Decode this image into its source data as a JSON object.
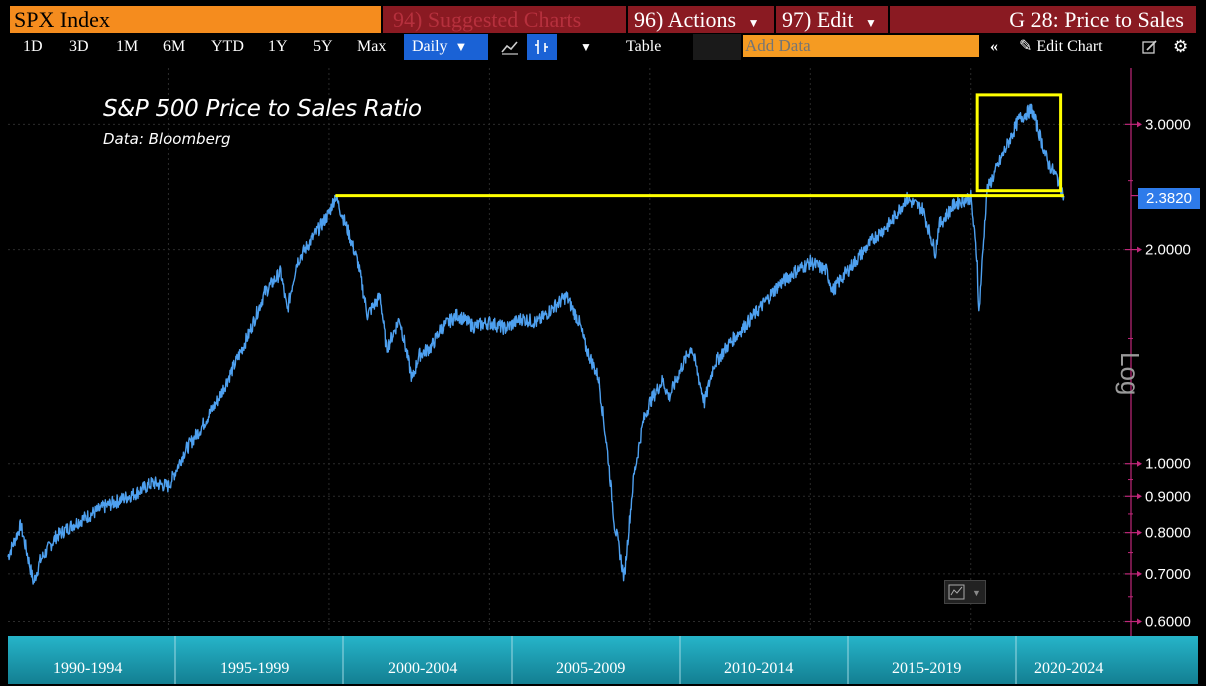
{
  "header": {
    "security": "SPX Index",
    "suggested": "94) Suggested Charts",
    "actions": "96) Actions",
    "edit": "97) Edit",
    "chart_title": "G 28: Price to Sales"
  },
  "toolbar": {
    "ranges": [
      "1D",
      "3D",
      "1M",
      "6M",
      "YTD",
      "1Y",
      "5Y",
      "Max"
    ],
    "frequency": "Daily",
    "table": "Table",
    "add_data_placeholder": "Add Data",
    "edit_chart": "Edit Chart"
  },
  "chart": {
    "title": "S&P 500 Price to Sales Ratio",
    "source": "Data: Bloomberg",
    "last_value": "2.3820",
    "scale_label": "Log"
  },
  "chart_data": {
    "type": "line",
    "title": "S&P 500 Price to Sales Ratio",
    "subtitle": "Data: Bloomberg",
    "ylabel": "Log",
    "y_scale": "log",
    "ylim": [
      0.58,
      3.6
    ],
    "y_ticks": [
      "3.0000",
      "2.0000",
      "1.0000",
      "0.9000",
      "0.8000",
      "0.7000",
      "0.6000"
    ],
    "x_periods": [
      "1990-1994",
      "1995-1999",
      "2000-2004",
      "2005-2009",
      "2010-2014",
      "2015-2019",
      "2020-2024"
    ],
    "colors": {
      "series": "#4ea0ef",
      "highlight": "#ffff00",
      "axis": "#c0277a",
      "panel": "#1aa3b8"
    },
    "series": [
      {
        "x": [
          1990.0,
          1990.4,
          1990.8,
          1991.0,
          1991.5,
          1992.0,
          1993.0,
          1994.0,
          1994.5,
          1995.0,
          1995.5,
          1996.0,
          1996.5,
          1997.0,
          1997.5,
          1998.0,
          1998.5,
          1998.7,
          1999.0,
          1999.5,
          2000.0,
          2000.2,
          2000.6,
          2000.9,
          2001.2,
          2001.6,
          2001.8,
          2002.2,
          2002.6,
          2002.8,
          2003.2,
          2003.5,
          2004.0,
          2004.5,
          2005.0,
          2005.5,
          2006.0,
          2006.5,
          2007.0,
          2007.4,
          2007.8,
          2008.0,
          2008.4,
          2008.7,
          2008.9,
          2009.0,
          2009.2,
          2009.5,
          2009.8,
          2010.0,
          2010.4,
          2010.6,
          2011.0,
          2011.3,
          2011.7,
          2012.0,
          2012.5,
          2013.0,
          2013.5,
          2014.0,
          2014.5,
          2015.0,
          2015.5,
          2015.7,
          2016.0,
          2016.5,
          2017.0,
          2017.5,
          2018.0,
          2018.5,
          2018.9,
          2019.0,
          2019.5,
          2020.0,
          2020.2,
          2020.25,
          2020.5,
          2021.0,
          2021.5,
          2021.9,
          2022.0,
          2022.4,
          2022.7,
          2022.9
        ],
        "y": [
          0.74,
          0.82,
          0.68,
          0.73,
          0.79,
          0.82,
          0.87,
          0.91,
          0.94,
          0.93,
          1.04,
          1.12,
          1.22,
          1.36,
          1.52,
          1.74,
          1.86,
          1.64,
          1.92,
          2.08,
          2.25,
          2.38,
          2.12,
          1.92,
          1.62,
          1.72,
          1.45,
          1.6,
          1.31,
          1.42,
          1.46,
          1.55,
          1.62,
          1.56,
          1.58,
          1.55,
          1.6,
          1.58,
          1.66,
          1.72,
          1.58,
          1.46,
          1.32,
          1.02,
          0.82,
          0.78,
          0.69,
          0.96,
          1.15,
          1.22,
          1.31,
          1.24,
          1.37,
          1.46,
          1.22,
          1.38,
          1.48,
          1.57,
          1.67,
          1.78,
          1.86,
          1.92,
          1.87,
          1.75,
          1.83,
          1.95,
          2.08,
          2.18,
          2.36,
          2.28,
          1.98,
          2.16,
          2.32,
          2.37,
          1.92,
          1.62,
          2.42,
          2.72,
          3.05,
          3.15,
          3.05,
          2.65,
          2.52,
          2.38
        ]
      }
    ],
    "annotations": [
      {
        "type": "horizontal_line",
        "y": 2.382,
        "x_from": 2000.2,
        "x_to": 2022.9,
        "color": "#ffff00"
      },
      {
        "type": "box",
        "x_from": 2020.2,
        "x_to": 2022.8,
        "y_from": 2.42,
        "y_to": 3.3,
        "color": "#ffff00"
      }
    ],
    "last_value": 2.382
  }
}
